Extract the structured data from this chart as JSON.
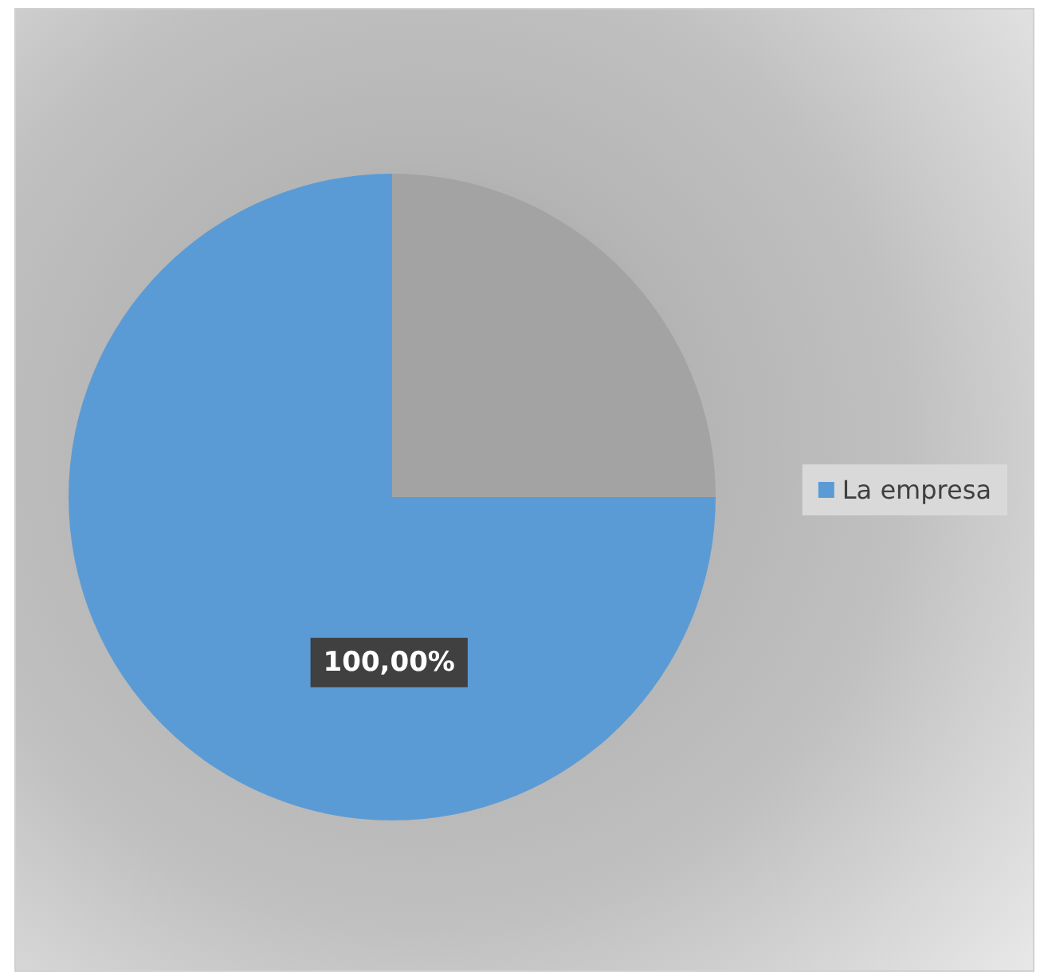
{
  "chart_data": {
    "type": "pie",
    "categories": [
      "La empresa",
      null
    ],
    "values": [
      100,
      33.33
    ],
    "colors": [
      "#5b9bd5",
      "#a3a3a3"
    ],
    "value_labels": [
      "100,00%",
      null
    ],
    "legend": "right"
  }
}
